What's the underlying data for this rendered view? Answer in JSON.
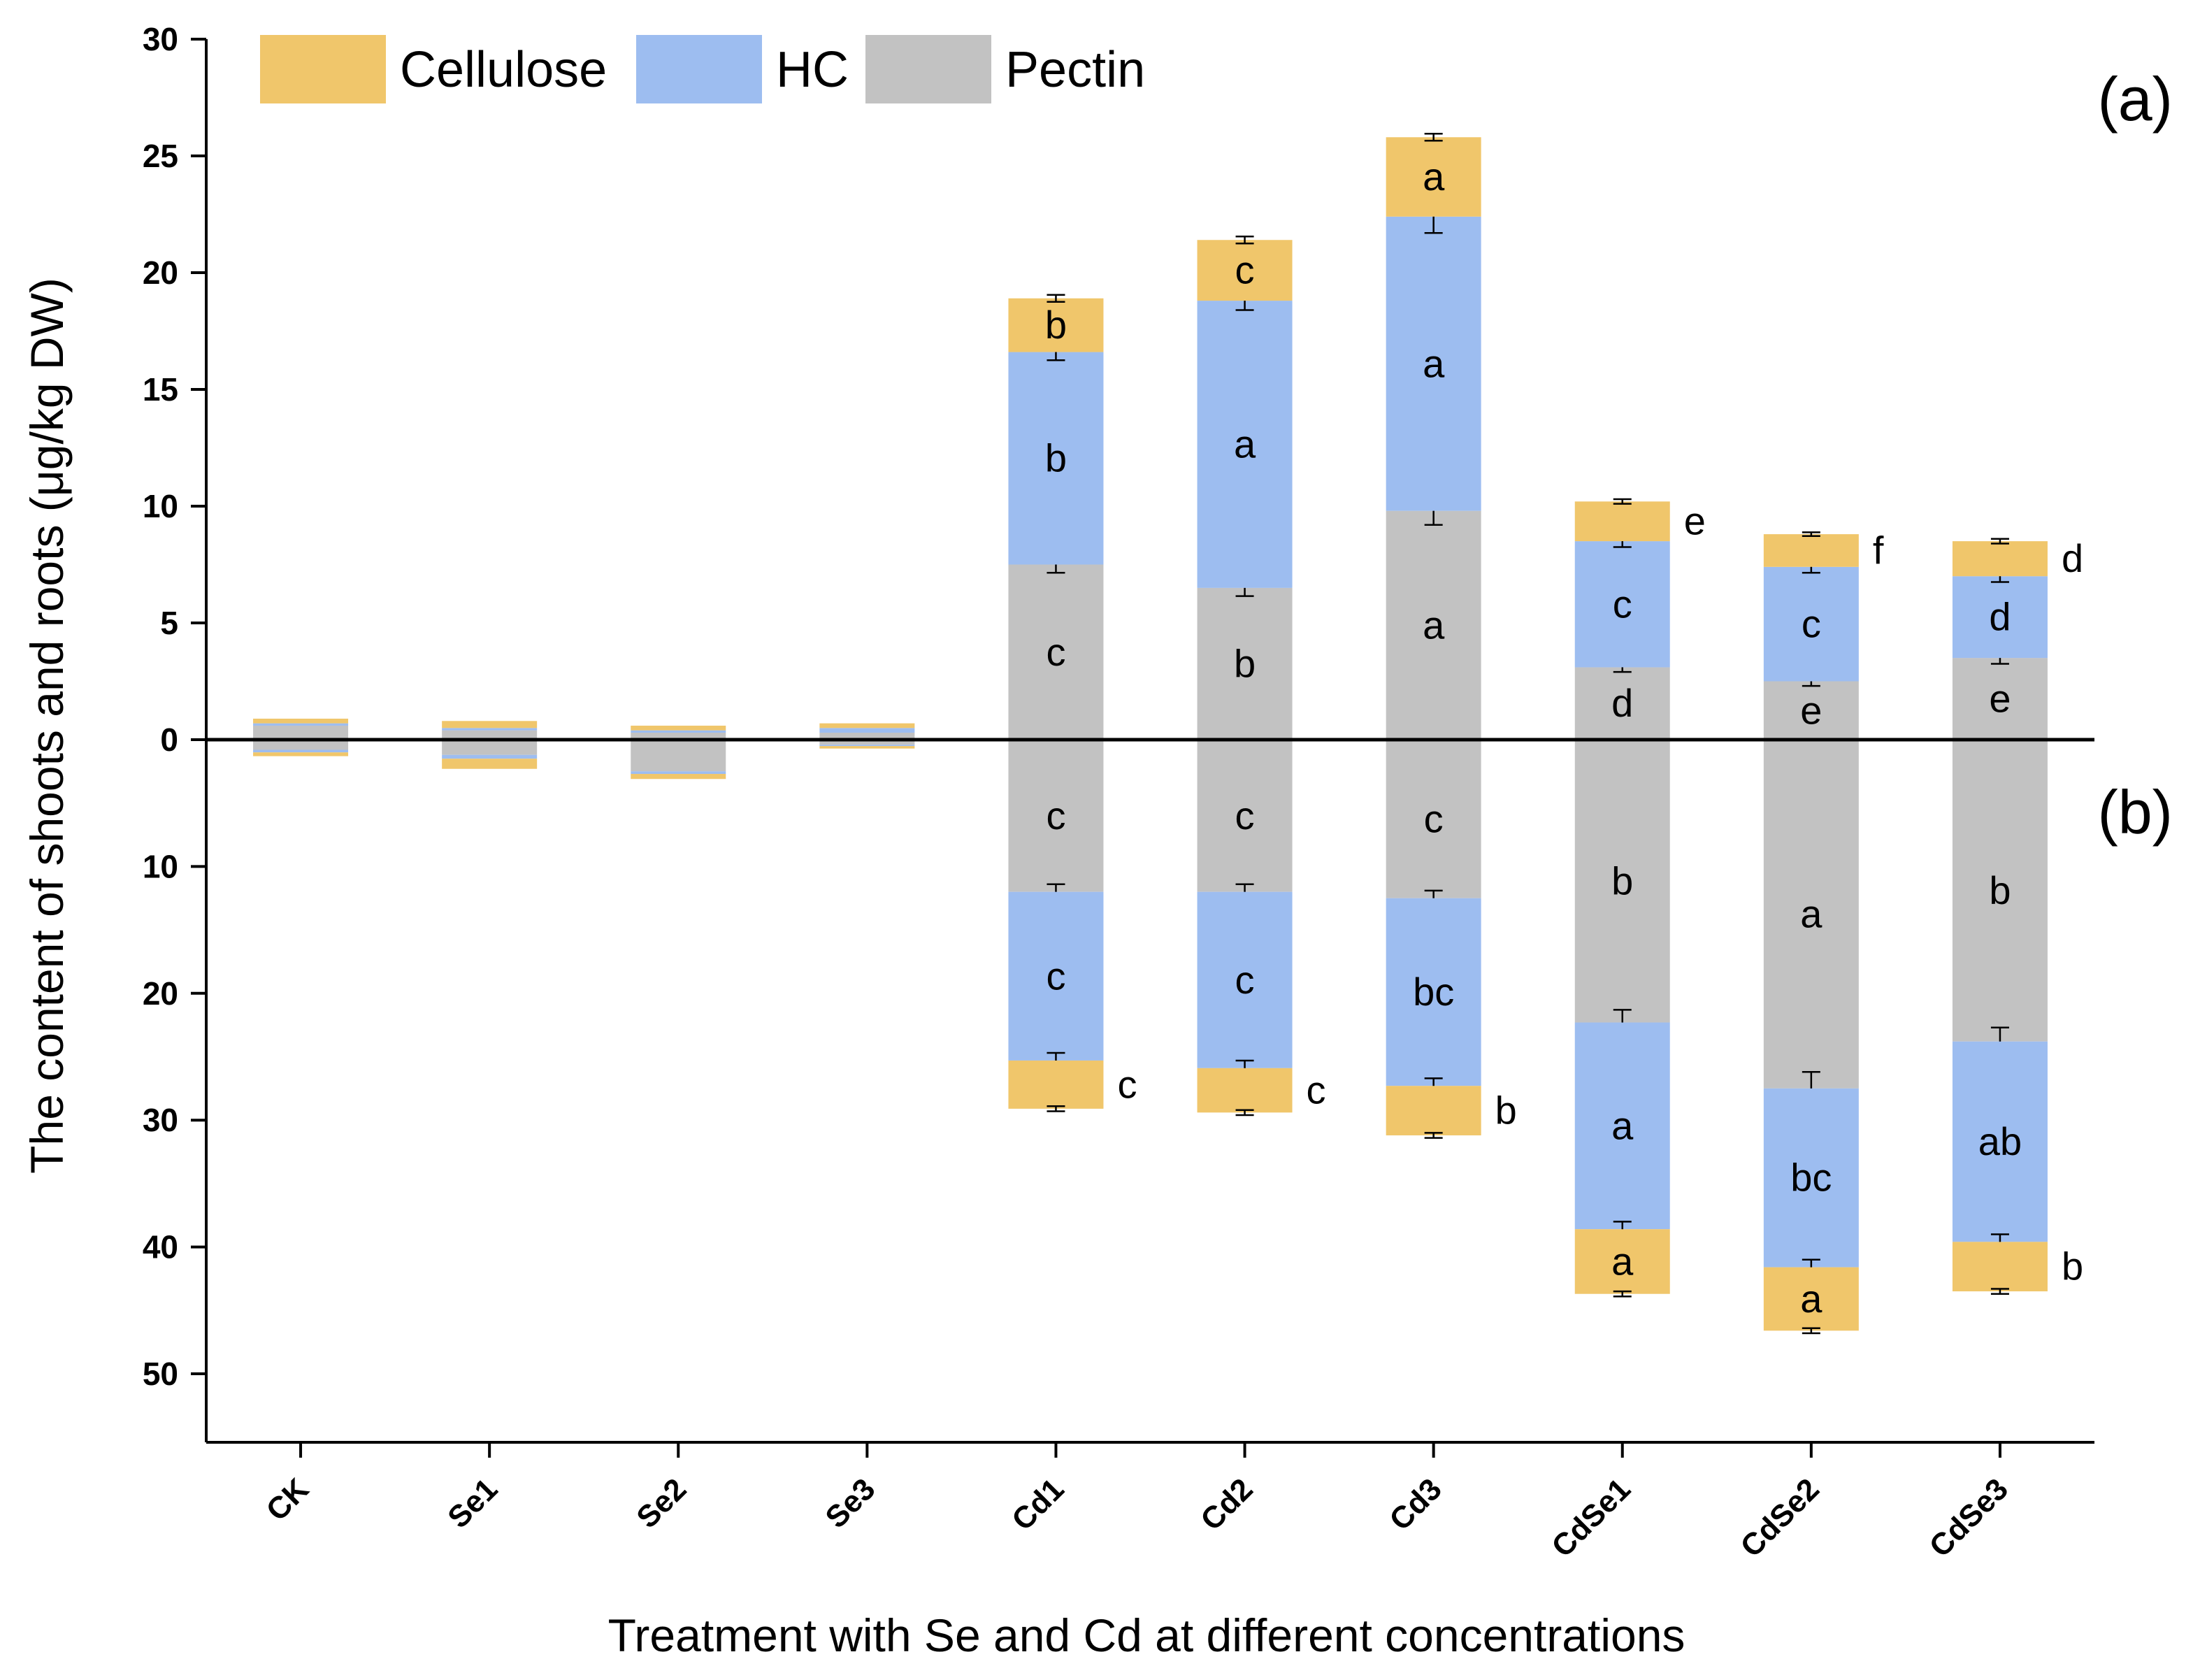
{
  "colors": {
    "cellulose": "#F0C66B",
    "hc": "#9DBDF0",
    "pectin": "#C2C2C2",
    "axis": "#000000"
  },
  "chart_data": {
    "type": "bar",
    "subtype": "stacked-diverging",
    "title": "",
    "xlabel": "Treatment with Se and Cd at different concentrations",
    "ylabel": "The content of shoots and roots (μg/kg DW)",
    "categories": [
      "CK",
      "Se1",
      "Se2",
      "Se3",
      "Cd1",
      "Cd2",
      "Cd3",
      "CdSe1",
      "CdSe2",
      "CdSe3"
    ],
    "legend": {
      "placement": "top-left",
      "entries": [
        "Cellulose",
        "HC",
        "Pectin"
      ]
    },
    "panels": [
      {
        "label": "(a)",
        "direction": "up",
        "ylim": [
          0,
          30
        ],
        "ticks": [
          0,
          5,
          10,
          15,
          20,
          25,
          30
        ],
        "series": [
          {
            "name": "Pectin",
            "values": [
              0.6,
              0.4,
              0.3,
              0.3,
              7.5,
              6.5,
              9.8,
              3.1,
              2.5,
              3.5
            ],
            "errors": [
              0,
              0,
              0,
              0,
              0.35,
              0.35,
              0.6,
              0.2,
              0.2,
              0.25
            ],
            "letters": [
              "",
              "",
              "",
              "",
              "c",
              "b",
              "a",
              "d",
              "e",
              "e"
            ]
          },
          {
            "name": "HC",
            "values": [
              0.1,
              0.1,
              0.1,
              0.2,
              9.1,
              12.3,
              12.6,
              5.4,
              4.9,
              3.5
            ],
            "errors": [
              0,
              0,
              0,
              0,
              0.35,
              0.4,
              0.7,
              0.25,
              0.25,
              0.25
            ],
            "letters": [
              "",
              "",
              "",
              "",
              "b",
              "a",
              "a",
              "c",
              "c",
              "d"
            ]
          },
          {
            "name": "Cellulose",
            "values": [
              0.2,
              0.3,
              0.2,
              0.2,
              2.3,
              2.6,
              3.4,
              1.7,
              1.4,
              1.5
            ],
            "errors": [
              0,
              0,
              0,
              0,
              0.15,
              0.15,
              0.15,
              0.1,
              0.08,
              0.1
            ],
            "letters": [
              "",
              "",
              "",
              "",
              "b",
              "c",
              "a",
              "e",
              "f",
              "d"
            ]
          }
        ]
      },
      {
        "label": "(b)",
        "direction": "down",
        "ylim": [
          0,
          55
        ],
        "ticks": [
          0,
          10,
          20,
          30,
          40,
          50
        ],
        "series": [
          {
            "name": "Pectin",
            "values": [
              0.8,
              1.2,
              2.5,
              0.4,
              12,
              12,
              12.5,
              22.3,
              27.5,
              23.8
            ],
            "errors": [
              0,
              0,
              0,
              0,
              0.6,
              0.6,
              0.6,
              1.0,
              1.3,
              1.1
            ],
            "letters": [
              "",
              "",
              "",
              "",
              "c",
              "c",
              "c",
              "b",
              "a",
              "b"
            ]
          },
          {
            "name": "HC",
            "values": [
              0.2,
              0.3,
              0.2,
              0.1,
              13.3,
              13.9,
              14.8,
              16.3,
              14.1,
              15.8
            ],
            "errors": [
              0,
              0,
              0,
              0,
              0.6,
              0.6,
              0.6,
              0.6,
              0.6,
              0.6
            ],
            "letters": [
              "",
              "",
              "",
              "",
              "c",
              "c",
              "bc",
              "a",
              "bc",
              "ab"
            ]
          },
          {
            "name": "Cellulose",
            "values": [
              0.3,
              0.8,
              0.4,
              0.2,
              3.8,
              3.5,
              3.9,
              5.1,
              5.0,
              3.9
            ],
            "errors": [
              0,
              0,
              0,
              0,
              0.2,
              0.2,
              0.2,
              0.2,
              0.2,
              0.2
            ],
            "letters": [
              "",
              "",
              "",
              "",
              "c",
              "c",
              "b",
              "a",
              "a",
              "b"
            ]
          }
        ]
      }
    ]
  }
}
